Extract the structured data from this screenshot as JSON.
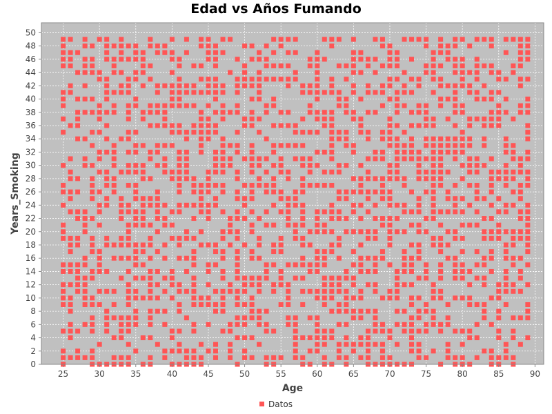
{
  "chart_data": {
    "type": "scatter",
    "title": "Edad vs Años Fumando",
    "xlabel": "Age",
    "ylabel": "Years_Smoking",
    "xlim": [
      22,
      91.2
    ],
    "ylim": [
      0,
      51.5
    ],
    "x_ticks": [
      25,
      30,
      35,
      40,
      45,
      50,
      55,
      60,
      65,
      70,
      75,
      80,
      85,
      90
    ],
    "y_ticks": [
      0,
      2,
      4,
      6,
      8,
      10,
      12,
      14,
      16,
      18,
      20,
      22,
      24,
      26,
      28,
      30,
      32,
      34,
      36,
      38,
      40,
      42,
      44,
      46,
      48,
      50
    ],
    "grid": true,
    "legend_position": "bottom",
    "series": [
      {
        "name": "Datos",
        "color": "#ff5555",
        "x_domain": [
          25,
          89
        ],
        "y_domain": [
          0,
          49
        ],
        "point_density": 0.5,
        "seed": 20240
      }
    ]
  },
  "colors": {
    "plot_background": "#c0c0c0",
    "gridline": "#ffffff",
    "marker": "#ff5555"
  }
}
